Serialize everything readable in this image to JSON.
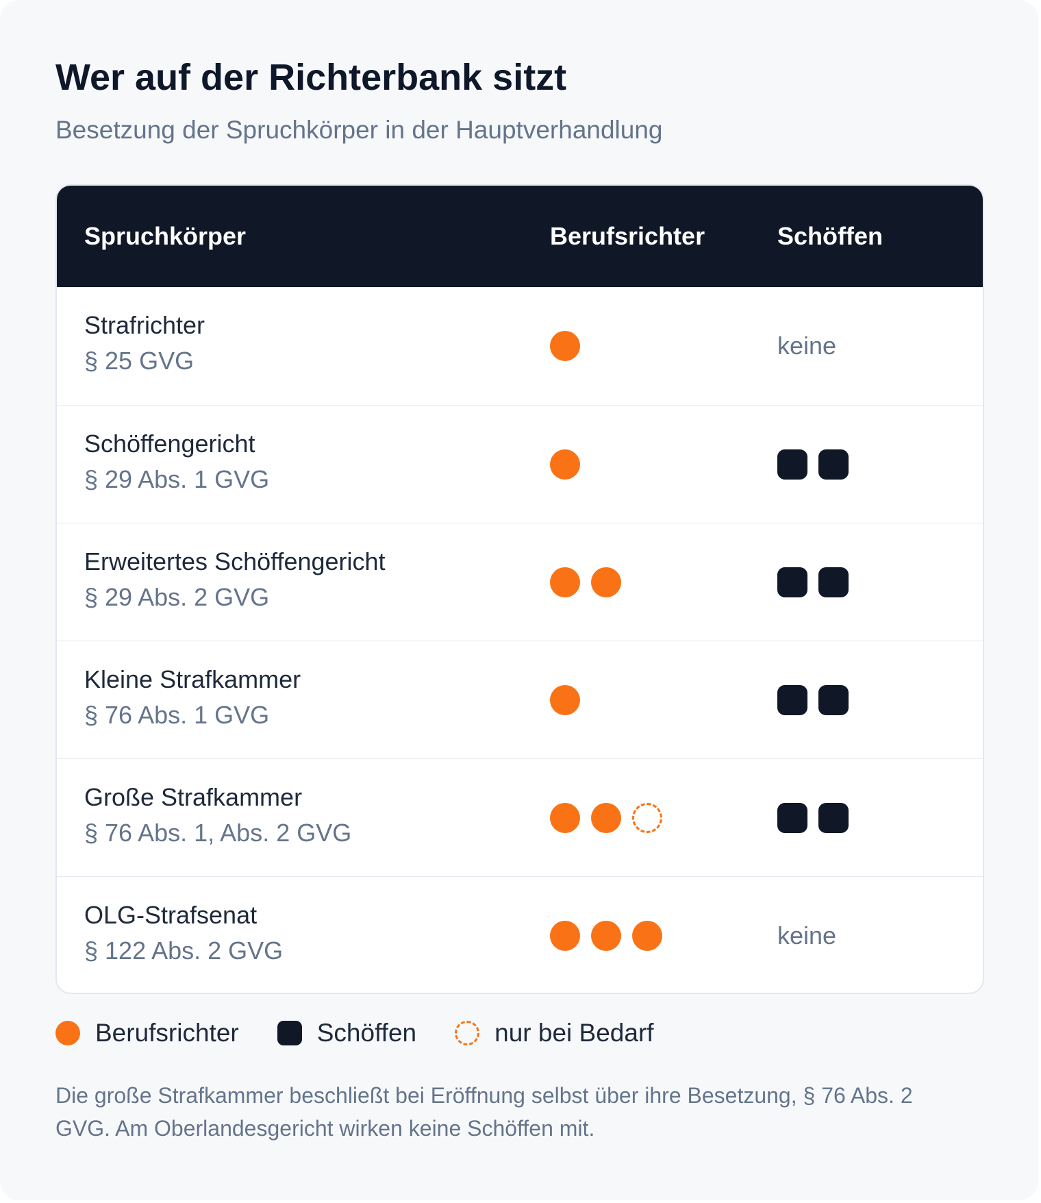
{
  "title": "Wer auf der Richterbank sitzt",
  "subtitle": "Besetzung der Spruchkörper in der Hauptverhandlung",
  "colors": {
    "professional_judge": "#f97316",
    "lay_judge": "#101828",
    "header_background": "#101828"
  },
  "table": {
    "headers": [
      "Spruchkörper",
      "Berufsrichter",
      "Schöffen"
    ],
    "rows": [
      {
        "name": "Strafrichter",
        "law": "§ 25 GVG",
        "professional_judges": 1,
        "optional_judges": 0,
        "lay_judges": 0,
        "lay_text": "keine"
      },
      {
        "name": "Schöffengericht",
        "law": "§ 29 Abs. 1 GVG",
        "professional_judges": 1,
        "optional_judges": 0,
        "lay_judges": 2,
        "lay_text": ""
      },
      {
        "name": "Erweitertes Schöffengericht",
        "law": "§ 29 Abs. 2 GVG",
        "professional_judges": 2,
        "optional_judges": 0,
        "lay_judges": 2,
        "lay_text": ""
      },
      {
        "name": "Kleine Strafkammer",
        "law": "§ 76 Abs. 1 GVG",
        "professional_judges": 1,
        "optional_judges": 0,
        "lay_judges": 2,
        "lay_text": ""
      },
      {
        "name": "Große Strafkammer",
        "law": "§ 76 Abs. 1, Abs. 2 GVG",
        "professional_judges": 2,
        "optional_judges": 1,
        "lay_judges": 2,
        "lay_text": ""
      },
      {
        "name": "OLG-Strafsenat",
        "law": "§ 122 Abs. 2 GVG",
        "professional_judges": 3,
        "optional_judges": 0,
        "lay_judges": 0,
        "lay_text": "keine"
      }
    ]
  },
  "legend": {
    "professional": "Berufsrichter",
    "lay": "Schöffen",
    "optional": "nur bei Bedarf"
  },
  "note": "Die große Strafkammer beschließt bei Eröffnung selbst über ihre Besetzung, § 76 Abs. 2 GVG. Am Oberlandesgericht wirken keine Schöffen mit."
}
